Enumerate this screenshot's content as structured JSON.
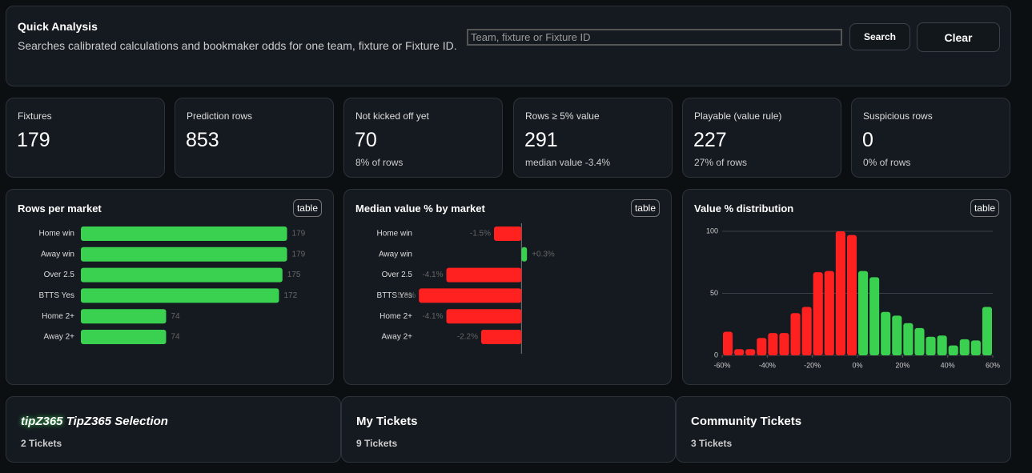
{
  "header": {
    "title": "Quick Analysis",
    "subtitle": "Searches calibrated calculations and bookmaker odds for one team, fixture or Fixture ID.",
    "search_placeholder": "Team, fixture or Fixture ID",
    "search_button": "Search",
    "clear_button": "Clear"
  },
  "stats": [
    {
      "label": "Fixtures",
      "value": "179"
    },
    {
      "label": "Prediction rows",
      "value": "853"
    },
    {
      "label": "Not kicked off yet",
      "value": "70",
      "sub": "8% of rows"
    },
    {
      "label": "Rows ≥ 5% value",
      "value": "291",
      "sub": "median value -3.4%"
    },
    {
      "label": "Playable (value rule)",
      "value": "227",
      "sub": "27% of rows"
    },
    {
      "label": "Suspicious rows",
      "value": "0",
      "sub": "0% of rows"
    }
  ],
  "chart_data": [
    {
      "type": "hbar",
      "title": "Rows per market",
      "button": "table",
      "categories": [
        "Home win",
        "Away win",
        "Over 2.5",
        "BTTS Yes",
        "Home 2+",
        "Away 2+"
      ],
      "values": [
        179,
        179,
        175,
        172,
        74,
        74
      ],
      "color": "#3ad150",
      "xlim": [
        0,
        180
      ]
    },
    {
      "type": "diverging",
      "title": "Median value % by market",
      "button": "table",
      "categories": [
        "Home win",
        "Away win",
        "Over 2.5",
        "BTTS Yes",
        "Home 2+",
        "Away 2+"
      ],
      "values": [
        -1.5,
        0.3,
        -4.1,
        -5.6,
        -4.1,
        -2.2
      ],
      "value_labels": [
        "-1.5%",
        "+0.3%",
        "-4.1%",
        "-5.6%",
        "-4.1%",
        "-2.2%"
      ],
      "color_negative": "#ff2020",
      "color_positive": "#3ad150",
      "xlim": [
        -6,
        3
      ]
    },
    {
      "type": "histogram",
      "title": "Value % distribution",
      "button": "table",
      "bins": [
        -60,
        -55,
        -50,
        -45,
        -40,
        -35,
        -30,
        -25,
        -20,
        -15,
        -10,
        -5,
        0,
        5,
        10,
        15,
        20,
        25,
        30,
        35,
        40,
        45,
        50,
        55,
        60
      ],
      "counts": [
        19,
        5,
        5,
        14,
        18,
        18,
        34,
        39,
        67,
        68,
        100,
        97,
        68,
        63,
        35,
        32,
        26,
        22,
        15,
        16,
        8,
        13,
        12,
        39
      ],
      "color_negative": "#ff2020",
      "color_positive": "#3ad150",
      "xlim": [
        -60,
        60
      ],
      "ylim": [
        0,
        100
      ],
      "yticks": [
        0,
        50,
        100
      ],
      "xticks": [
        {
          "value": -60,
          "label": "-60%"
        },
        {
          "value": -40,
          "label": "-40%"
        },
        {
          "value": -20,
          "label": "-20%"
        },
        {
          "value": 0,
          "label": "0%"
        },
        {
          "value": 20,
          "label": "20%"
        },
        {
          "value": 40,
          "label": "40%"
        },
        {
          "value": 60,
          "label": "60%"
        }
      ],
      "grid": true
    }
  ],
  "tickets": [
    {
      "logo": "tipZ365",
      "title": "TipZ365 Selection",
      "count": "2 Tickets"
    },
    {
      "title": "My Tickets",
      "count": "9 Tickets"
    },
    {
      "title": "Community Tickets",
      "count": "3 Tickets"
    }
  ]
}
